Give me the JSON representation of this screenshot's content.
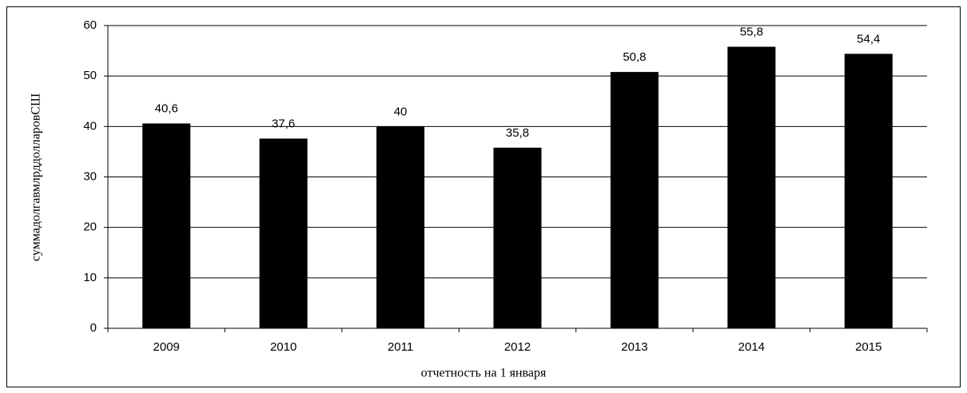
{
  "chart_data": {
    "type": "bar",
    "categories": [
      "2009",
      "2010",
      "2011",
      "2012",
      "2013",
      "2014",
      "2015"
    ],
    "values": [
      40.6,
      37.6,
      40,
      35.8,
      50.8,
      55.8,
      54.4
    ],
    "value_labels": [
      "40,6",
      "37,6",
      "40",
      "35,8",
      "50,8",
      "55,8",
      "54,4"
    ],
    "color": "#000000",
    "ylim": [
      0,
      60
    ],
    "yticks": [
      0,
      10,
      20,
      30,
      40,
      50,
      60
    ],
    "grid": true,
    "y_label": "суммадолгавмлрддолларовСШ",
    "x_label": "отчетность на 1 января"
  }
}
